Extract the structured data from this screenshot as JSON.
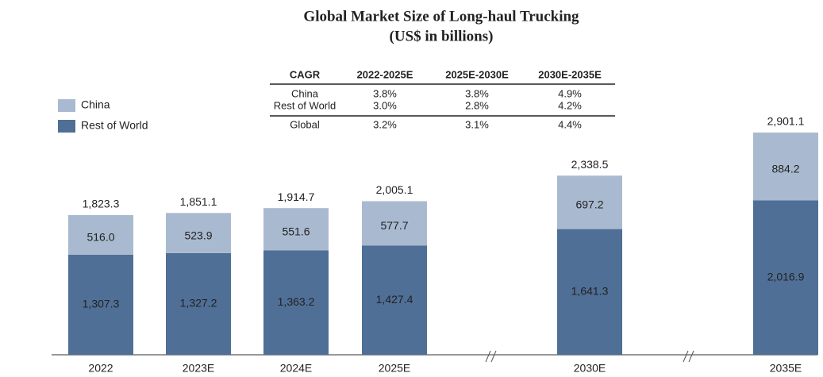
{
  "chart_data": {
    "type": "stacked_bar",
    "title": "Global Market Size of Long-haul Trucking",
    "subtitle": "(US$ in billions)",
    "categories": [
      "2022",
      "2023E",
      "2024E",
      "2025E",
      "2030E",
      "2035E"
    ],
    "series": [
      {
        "name": "Rest of World",
        "color": "#4f6f96",
        "values": [
          1307.3,
          1327.2,
          1363.2,
          1427.4,
          1641.3,
          2016.9
        ],
        "value_labels": [
          "1,307.3",
          "1,327.2",
          "1,363.2",
          "1,427.4",
          "1,641.3",
          "2,016.9"
        ]
      },
      {
        "name": "China",
        "color": "#a9bad0",
        "values": [
          516.0,
          523.9,
          551.6,
          577.7,
          697.2,
          884.2
        ],
        "value_labels": [
          "516.0",
          "523.9",
          "551.6",
          "577.7",
          "697.2",
          "884.2"
        ]
      }
    ],
    "totals": [
      1823.3,
      1851.1,
      1914.7,
      2005.1,
      2338.5,
      2901.1
    ],
    "total_labels": [
      "1,823.3",
      "1,851.1",
      "1,914.7",
      "2,005.1",
      "2,338.5",
      "2,901.1"
    ],
    "cagr_table": {
      "header": [
        "CAGR",
        "2022-2025E",
        "2025E-2030E",
        "2030E-2035E"
      ],
      "rows": [
        [
          "China",
          "3.8%",
          "3.8%",
          "4.9%"
        ],
        [
          "Rest of World",
          "3.0%",
          "2.8%",
          "4.2%"
        ],
        [
          "Global",
          "3.2%",
          "3.1%",
          "4.4%"
        ]
      ]
    }
  }
}
